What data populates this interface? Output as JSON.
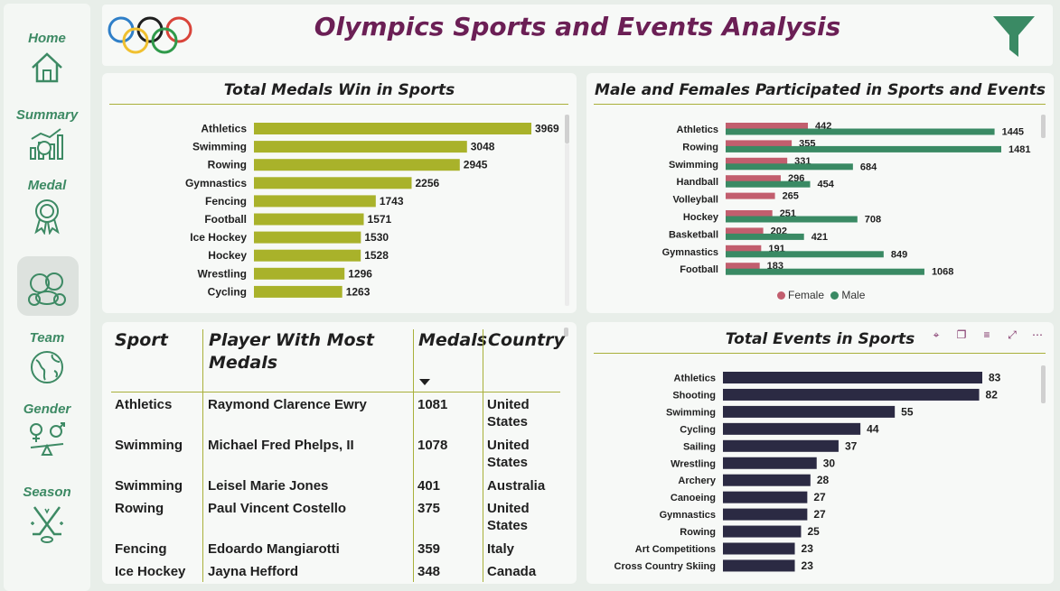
{
  "header": {
    "title": "Olympics Sports and Events Analysis"
  },
  "nav": [
    {
      "label": "Home",
      "icon": "home-icon"
    },
    {
      "label": "Summary",
      "icon": "analytics-icon"
    },
    {
      "label": "Medal",
      "icon": "medal-icon"
    },
    {
      "label": "",
      "icon": "sports-balls-icon"
    },
    {
      "label": "Team",
      "icon": "globe-icon"
    },
    {
      "label": "Gender",
      "icon": "gender-icon"
    },
    {
      "label": "Season",
      "icon": "hockey-sticks-icon"
    }
  ],
  "colors": {
    "accent": "#3d8a64",
    "title": "#6b1f55",
    "olive": "#a9b22a",
    "female": "#c25e6e",
    "male": "#3a8a64",
    "navy": "#2b2a43"
  },
  "medals_panel": {
    "title": "Total Medals Win in Sports"
  },
  "gender_panel": {
    "title": "Male and Females Participated in Sports and Events",
    "legend_female": "Female",
    "legend_male": "Male"
  },
  "events_panel": {
    "title": "Total Events in Sports"
  },
  "table": {
    "headers": {
      "sport": "Sport",
      "player": "Player With Most Medals",
      "medals": "Medals",
      "country": "Country"
    },
    "rows": [
      {
        "sport": "Athletics",
        "player": "Raymond Clarence Ewry",
        "medals": "1081",
        "country": "United States"
      },
      {
        "sport": "Swimming",
        "player": "Michael Fred Phelps, II",
        "medals": "1078",
        "country": "United States"
      },
      {
        "sport": "Swimming",
        "player": "Leisel Marie Jones",
        "medals": "401",
        "country": "Australia"
      },
      {
        "sport": "Rowing",
        "player": "Paul Vincent Costello",
        "medals": "375",
        "country": "United States"
      },
      {
        "sport": "Fencing",
        "player": "Edoardo Mangiarotti",
        "medals": "359",
        "country": "Italy"
      },
      {
        "sport": "Ice Hockey",
        "player": "Jayna Hefford",
        "medals": "348",
        "country": "Canada"
      }
    ]
  },
  "chart_data": [
    {
      "type": "bar",
      "title": "Total Medals Win in Sports",
      "categories": [
        "Athletics",
        "Swimming",
        "Rowing",
        "Gymnastics",
        "Fencing",
        "Football",
        "Ice Hockey",
        "Hockey",
        "Wrestling",
        "Cycling"
      ],
      "values": [
        3969,
        3048,
        2945,
        2256,
        1743,
        1571,
        1530,
        1528,
        1296,
        1263
      ]
    },
    {
      "type": "bar",
      "title": "Male and Females Participated in Sports and Events",
      "categories": [
        "Athletics",
        "Rowing",
        "Swimming",
        "Handball",
        "Volleyball",
        "Hockey",
        "Basketball",
        "Gymnastics",
        "Football"
      ],
      "series": [
        {
          "name": "Female",
          "values": [
            442,
            355,
            331,
            296,
            265,
            251,
            202,
            191,
            183
          ]
        },
        {
          "name": "Male",
          "values": [
            1445,
            1481,
            684,
            454,
            null,
            708,
            421,
            849,
            1068
          ]
        }
      ],
      "legend": "bottom"
    },
    {
      "type": "bar",
      "title": "Total Events in Sports",
      "categories": [
        "Athletics",
        "Shooting",
        "Swimming",
        "Cycling",
        "Sailing",
        "Wrestling",
        "Archery",
        "Canoeing",
        "Gymnastics",
        "Rowing",
        "Art Competitions",
        "Cross Country Skiing"
      ],
      "values": [
        83,
        82,
        55,
        44,
        37,
        30,
        28,
        27,
        27,
        25,
        23,
        23
      ]
    }
  ]
}
